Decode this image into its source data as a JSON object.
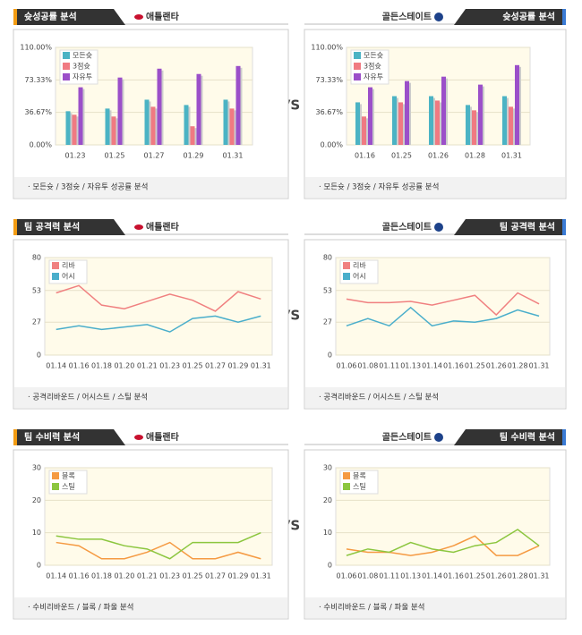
{
  "vs_labels": [
    "VS",
    "VS",
    "VS"
  ],
  "chart_data": [
    {
      "type": "bar",
      "section_title": "슛성공률 분석",
      "team": "애틀랜타",
      "footer": "· 모든슛 / 3점슛 / 자유투 성공률 분석",
      "categories": [
        "01.23",
        "01.25",
        "01.27",
        "01.29",
        "01.31"
      ],
      "series": [
        {
          "name": "모든슛",
          "color": "#4bb3c4",
          "values": [
            38,
            41,
            51,
            45,
            51
          ]
        },
        {
          "name": "3점슛",
          "color": "#f07a82",
          "values": [
            34,
            32,
            43,
            21,
            41
          ]
        },
        {
          "name": "자유투",
          "color": "#9b4fc9",
          "values": [
            65,
            76,
            86,
            80,
            89
          ]
        }
      ],
      "ylim": [
        0,
        110
      ],
      "yticks": [
        {
          "value": 0,
          "label": "0.00%"
        },
        {
          "value": 36.67,
          "label": "36.67%"
        },
        {
          "value": 73.33,
          "label": "73.33%"
        },
        {
          "value": 110,
          "label": "110.00%"
        }
      ]
    },
    {
      "type": "bar",
      "section_title": "슛성공률 분석",
      "team": "골든스테이트",
      "footer": "· 모든슛 / 3점슛 / 자유투 성공률 분석",
      "categories": [
        "01.16",
        "01.25",
        "01.26",
        "01.28",
        "01.31"
      ],
      "series": [
        {
          "name": "모든슛",
          "color": "#4bb3c4",
          "values": [
            48,
            55,
            55,
            45,
            55
          ]
        },
        {
          "name": "3점슛",
          "color": "#f07a82",
          "values": [
            32,
            48,
            50,
            39,
            43
          ]
        },
        {
          "name": "자유투",
          "color": "#9b4fc9",
          "values": [
            65,
            72,
            77,
            68,
            90
          ]
        }
      ],
      "ylim": [
        0,
        110
      ],
      "yticks": [
        {
          "value": 0,
          "label": "0.00%"
        },
        {
          "value": 36.67,
          "label": "36.67%"
        },
        {
          "value": 73.33,
          "label": "73.33%"
        },
        {
          "value": 110,
          "label": "110.00%"
        }
      ]
    },
    {
      "type": "line",
      "section_title": "팀 공격력 분석",
      "team": "애틀랜타",
      "footer": "· 공격리바운드 / 어시스트 / 스틸 분석",
      "categories": [
        "01.14",
        "01.16",
        "01.18",
        "01.20",
        "01.21",
        "01.23",
        "01.25",
        "01.27",
        "01.29",
        "01.31"
      ],
      "series": [
        {
          "name": "리바",
          "color": "#f08080",
          "values": [
            51,
            57,
            41,
            38,
            44,
            50,
            45,
            36,
            52,
            46
          ]
        },
        {
          "name": "어시",
          "color": "#4aaecb",
          "values": [
            21,
            24,
            21,
            23,
            25,
            19,
            30,
            32,
            27,
            32
          ]
        }
      ],
      "ylim": [
        0,
        80
      ],
      "yticks": [
        0,
        27,
        53,
        80
      ]
    },
    {
      "type": "line",
      "section_title": "팀 공격력 분석",
      "team": "골든스테이트",
      "footer": "· 공격리바운드 / 어시스트 / 스틸 분석",
      "categories": [
        "01.06",
        "01.08",
        "01.11",
        "01.13",
        "01.14",
        "01.16",
        "01.25",
        "01.26",
        "01.28",
        "01.31"
      ],
      "series": [
        {
          "name": "리바",
          "color": "#f08080",
          "values": [
            46,
            43,
            43,
            44,
            41,
            45,
            49,
            33,
            51,
            42
          ]
        },
        {
          "name": "어시",
          "color": "#4aaecb",
          "values": [
            24,
            30,
            24,
            39,
            24,
            28,
            27,
            30,
            37,
            32
          ]
        }
      ],
      "ylim": [
        0,
        80
      ],
      "yticks": [
        0,
        27,
        53,
        80
      ]
    },
    {
      "type": "line",
      "section_title": "팀 수비력 분석",
      "team": "애틀랜타",
      "footer": "· 수비리바운드 / 블록 / 파울 분석",
      "categories": [
        "01.14",
        "01.16",
        "01.18",
        "01.20",
        "01.21",
        "01.23",
        "01.25",
        "01.27",
        "01.29",
        "01.31"
      ],
      "series": [
        {
          "name": "블록",
          "color": "#f59a42",
          "values": [
            7,
            6,
            2,
            2,
            4,
            7,
            2,
            2,
            4,
            2
          ]
        },
        {
          "name": "스틸",
          "color": "#8cc63f",
          "values": [
            9,
            8,
            8,
            6,
            5,
            2,
            7,
            7,
            7,
            10
          ]
        }
      ],
      "ylim": [
        0,
        30
      ],
      "yticks": [
        0,
        10,
        20,
        30
      ]
    },
    {
      "type": "line",
      "section_title": "팀 수비력 분석",
      "team": "골든스테이트",
      "footer": "· 수비리바운드 / 블록 / 파울 분석",
      "categories": [
        "01.06",
        "01.08",
        "01.11",
        "01.13",
        "01.14",
        "01.16",
        "01.25",
        "01.26",
        "01.28",
        "01.31"
      ],
      "series": [
        {
          "name": "블록",
          "color": "#f59a42",
          "values": [
            5,
            4,
            4,
            3,
            4,
            6,
            9,
            3,
            3,
            6
          ]
        },
        {
          "name": "스틸",
          "color": "#8cc63f",
          "values": [
            3,
            5,
            4,
            7,
            5,
            4,
            6,
            7,
            11,
            6
          ]
        }
      ],
      "ylim": [
        0,
        30
      ],
      "yticks": [
        0,
        10,
        20,
        30
      ]
    }
  ]
}
